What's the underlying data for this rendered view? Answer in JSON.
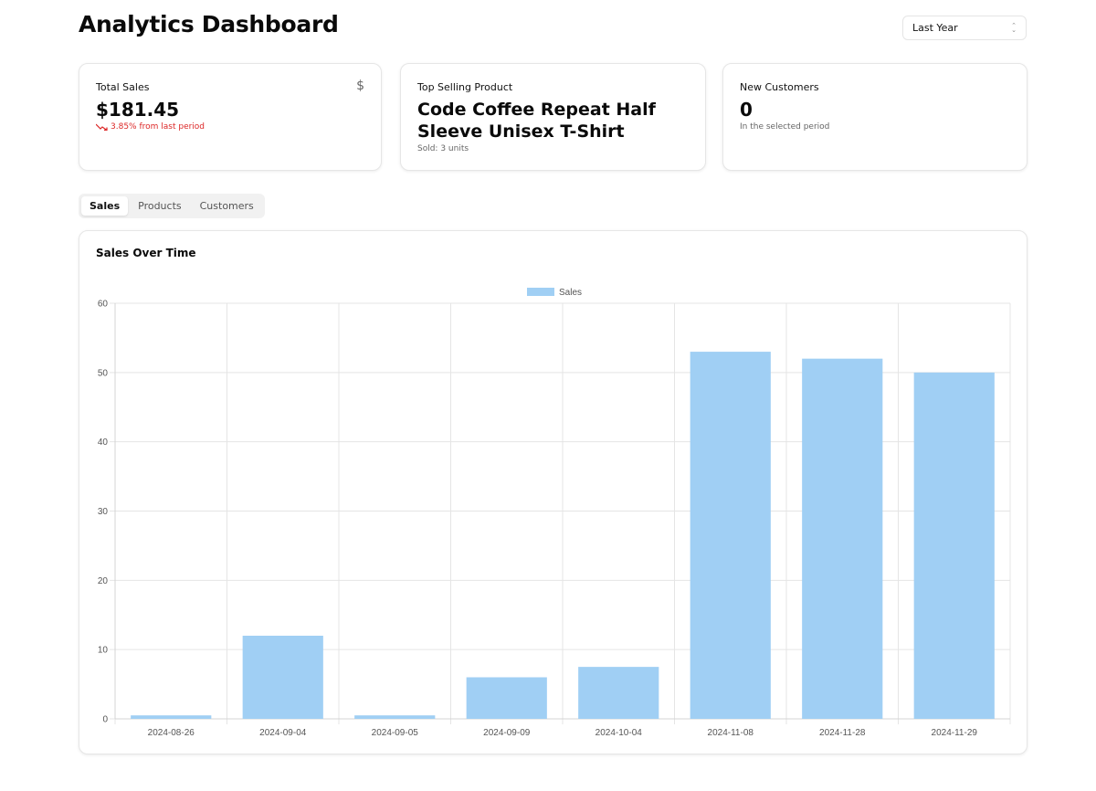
{
  "header": {
    "title": "Analytics Dashboard",
    "period_select": {
      "value": "Last Year"
    }
  },
  "cards": {
    "total_sales": {
      "label": "Total Sales",
      "value": "$181.45",
      "trend_text": "3.85% from last period",
      "icon": "dollar-icon",
      "trend_color": "#dc2626"
    },
    "top_product": {
      "label": "Top Selling Product",
      "name": "Code Coffee Repeat Half Sleeve Unisex T-Shirt",
      "sub": "Sold: 3 units"
    },
    "new_customers": {
      "label": "New Customers",
      "value": "0",
      "sub": "In the selected period"
    }
  },
  "tabs": [
    {
      "label": "Sales",
      "active": true
    },
    {
      "label": "Products",
      "active": false
    },
    {
      "label": "Customers",
      "active": false
    }
  ],
  "chart_card": {
    "title": "Sales Over Time"
  },
  "chart_data": {
    "type": "bar",
    "categories": [
      "2024-08-26",
      "2024-09-04",
      "2024-09-05",
      "2024-09-09",
      "2024-10-04",
      "2024-11-08",
      "2024-11-28",
      "2024-11-29"
    ],
    "series": [
      {
        "name": "Sales",
        "values": [
          0.5,
          12,
          0.5,
          6,
          7.5,
          53,
          52,
          50
        ],
        "color": "#a0cff4"
      }
    ],
    "ylim": [
      0,
      60
    ],
    "yticks": [
      0,
      10,
      20,
      30,
      40,
      50,
      60
    ],
    "grid": true,
    "legend": "top-center"
  }
}
